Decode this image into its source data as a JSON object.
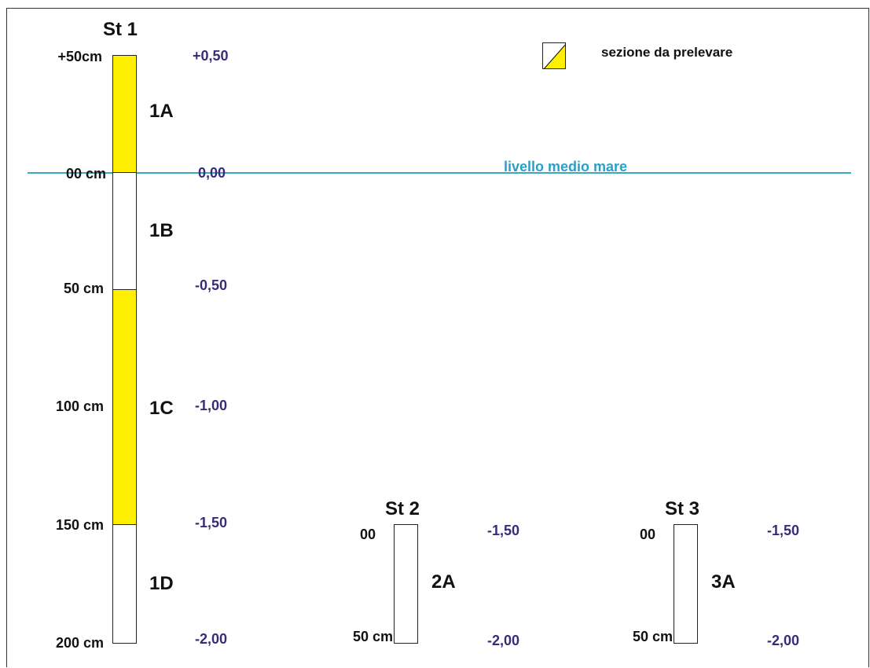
{
  "colors": {
    "sampled": "#ffef00",
    "not_sampled": "#ffffff",
    "sea_level": "#3aa9c0",
    "elevation_text": "#3a2a7a"
  },
  "legend": {
    "label": "sezione da prelevare",
    "icon": "half-yellow-square-icon"
  },
  "sea_level": {
    "label": "livello medio mare"
  },
  "station1": {
    "title": "St 1",
    "depths": [
      "+50cm",
      "00 cm",
      "50 cm",
      "100 cm",
      "150 cm",
      "200 cm"
    ],
    "elevations": [
      "+0,50",
      "0,00",
      "-0,50",
      "-1,00",
      "-1,50",
      "-2,00"
    ],
    "sections": [
      {
        "label": "1A",
        "sampled": true
      },
      {
        "label": "1B",
        "sampled": false
      },
      {
        "label": "1C",
        "sampled": true
      },
      {
        "label": "1D",
        "sampled": false
      }
    ]
  },
  "station2": {
    "title": "St 2",
    "depths": [
      "00",
      "50 cm"
    ],
    "elevations": [
      "-1,50",
      "-2,00"
    ],
    "sections": [
      {
        "label": "2A",
        "sampled": false
      }
    ]
  },
  "station3": {
    "title": "St 3",
    "depths": [
      "00",
      "50 cm"
    ],
    "elevations": [
      "-1,50",
      "-2,00"
    ],
    "sections": [
      {
        "label": "3A",
        "sampled": false
      }
    ]
  }
}
